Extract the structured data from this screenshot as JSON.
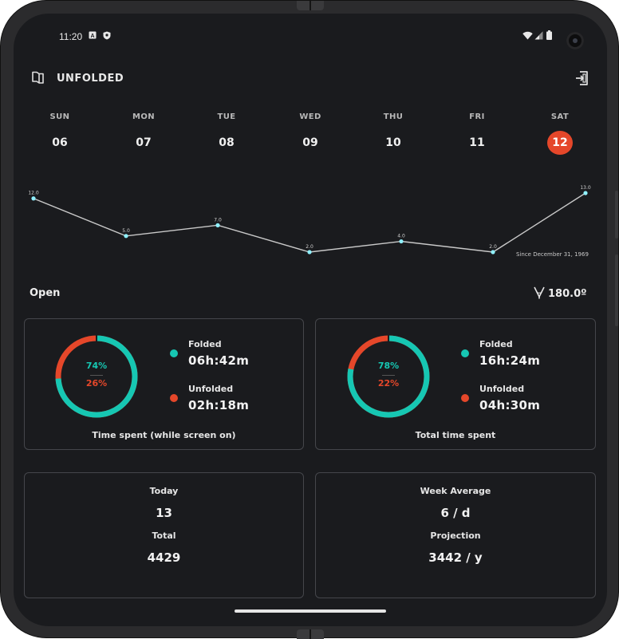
{
  "status_bar": {
    "time": "11:20",
    "icons": [
      "a-icon",
      "shield-icon",
      "wifi-icon",
      "signal-icon",
      "battery-icon"
    ]
  },
  "header": {
    "title": "UNFOLDED",
    "left_icon": "book-icon",
    "right_icon": "exit-icon"
  },
  "week": {
    "days": [
      {
        "name": "SUN",
        "num": "06"
      },
      {
        "name": "MON",
        "num": "07"
      },
      {
        "name": "TUE",
        "num": "08"
      },
      {
        "name": "WED",
        "num": "09"
      },
      {
        "name": "THU",
        "num": "10"
      },
      {
        "name": "FRI",
        "num": "11"
      },
      {
        "name": "SAT",
        "num": "12"
      }
    ],
    "selected_index": 6,
    "selected_color": "#e5472a"
  },
  "chart_data": {
    "type": "line",
    "categories": [
      "SUN",
      "MON",
      "TUE",
      "WED",
      "THU",
      "FRI",
      "SAT"
    ],
    "values": [
      12.0,
      5.0,
      7.0,
      2.0,
      4.0,
      2.0,
      13.0
    ],
    "data_labels": [
      "12.0",
      "5.0",
      "7.0",
      "2.0",
      "4.0",
      "2.0",
      "13.0"
    ],
    "ylim": [
      2.0,
      13.0
    ],
    "grid": false,
    "line_color": "#c9c9c9",
    "point_color": "#8ff0ff",
    "annotation": "Since December 31, 1969"
  },
  "state": {
    "label": "Open",
    "angle": "180.0º",
    "angle_icon": "hinge-angle-icon"
  },
  "cards": {
    "time_spent": {
      "folded_pct": 74,
      "unfolded_pct": 26,
      "folded_pct_text": "74%",
      "unfolded_pct_text": "26%",
      "folded_label": "Folded",
      "folded_value": "06h:42m",
      "unfolded_label": "Unfolded",
      "unfolded_value": "02h:18m",
      "caption": "Time spent (while screen on)"
    },
    "total_time": {
      "folded_pct": 78,
      "unfolded_pct": 22,
      "folded_pct_text": "78%",
      "unfolded_pct_text": "22%",
      "folded_label": "Folded",
      "folded_value": "16h:24m",
      "unfolded_label": "Unfolded",
      "unfolded_value": "04h:30m",
      "caption": "Total time spent"
    },
    "counts": {
      "today_label": "Today",
      "today_value": "13",
      "total_label": "Total",
      "total_value": "4429"
    },
    "averages": {
      "week_avg_label": "Week Average",
      "week_avg_value": "6 / d",
      "projection_label": "Projection",
      "projection_value": "3442 / y"
    }
  },
  "colors": {
    "folded": "#16c7b3",
    "unfolded": "#e5472a",
    "background": "#1a1b1e",
    "card_border": "#45464b"
  }
}
